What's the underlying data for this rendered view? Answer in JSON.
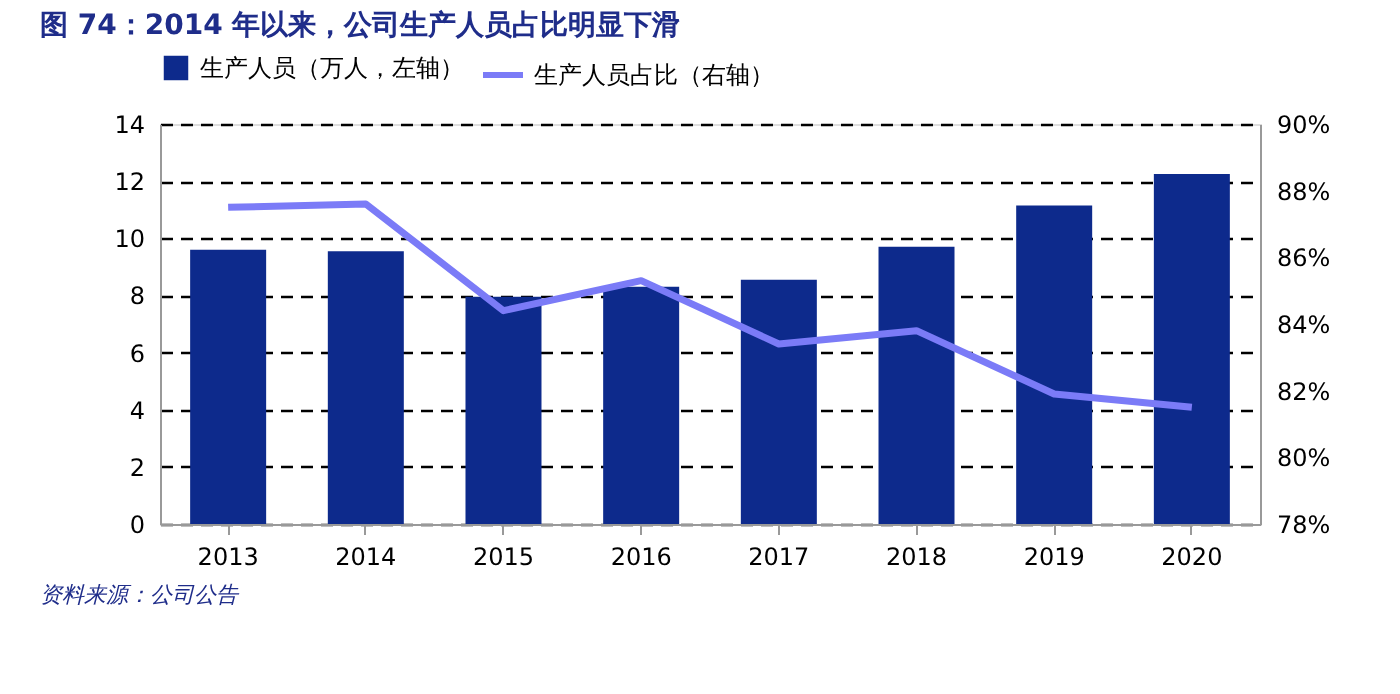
{
  "chart_data": {
    "type": "bar",
    "title": "图 74：2014 年以来，公司生产人员占比明显下滑",
    "categories": [
      "2013",
      "2014",
      "2015",
      "2016",
      "2017",
      "2018",
      "2019",
      "2020"
    ],
    "series": [
      {
        "name": "生产人员（万人，左轴）",
        "color": "#0d2a8c",
        "type": "bar",
        "values": [
          9.6,
          9.55,
          7.95,
          8.3,
          8.55,
          9.7,
          11.15,
          12.25
        ]
      },
      {
        "name": "生产人员占比（右轴）",
        "color": "#7b7bf7",
        "type": "line",
        "axis": "y2",
        "values": [
          87.5,
          87.6,
          84.4,
          85.3,
          83.4,
          83.8,
          81.9,
          81.5
        ]
      }
    ],
    "ylim": [
      0,
      14
    ],
    "yticks": [
      0,
      2,
      4,
      6,
      8,
      10,
      12,
      14
    ],
    "y2lim": [
      78,
      90
    ],
    "y2ticks": [
      {
        "value": 78,
        "label": "78%"
      },
      {
        "value": 80,
        "label": "80%"
      },
      {
        "value": 82,
        "label": "82%"
      },
      {
        "value": 84,
        "label": "84%"
      },
      {
        "value": 86,
        "label": "86%"
      },
      {
        "value": 88,
        "label": "88%"
      },
      {
        "value": 90,
        "label": "90%"
      }
    ],
    "grid": "y",
    "legend": "top",
    "line_style": "solid",
    "marker": "none",
    "annotations": [
      "资料来源：公司公告"
    ]
  }
}
